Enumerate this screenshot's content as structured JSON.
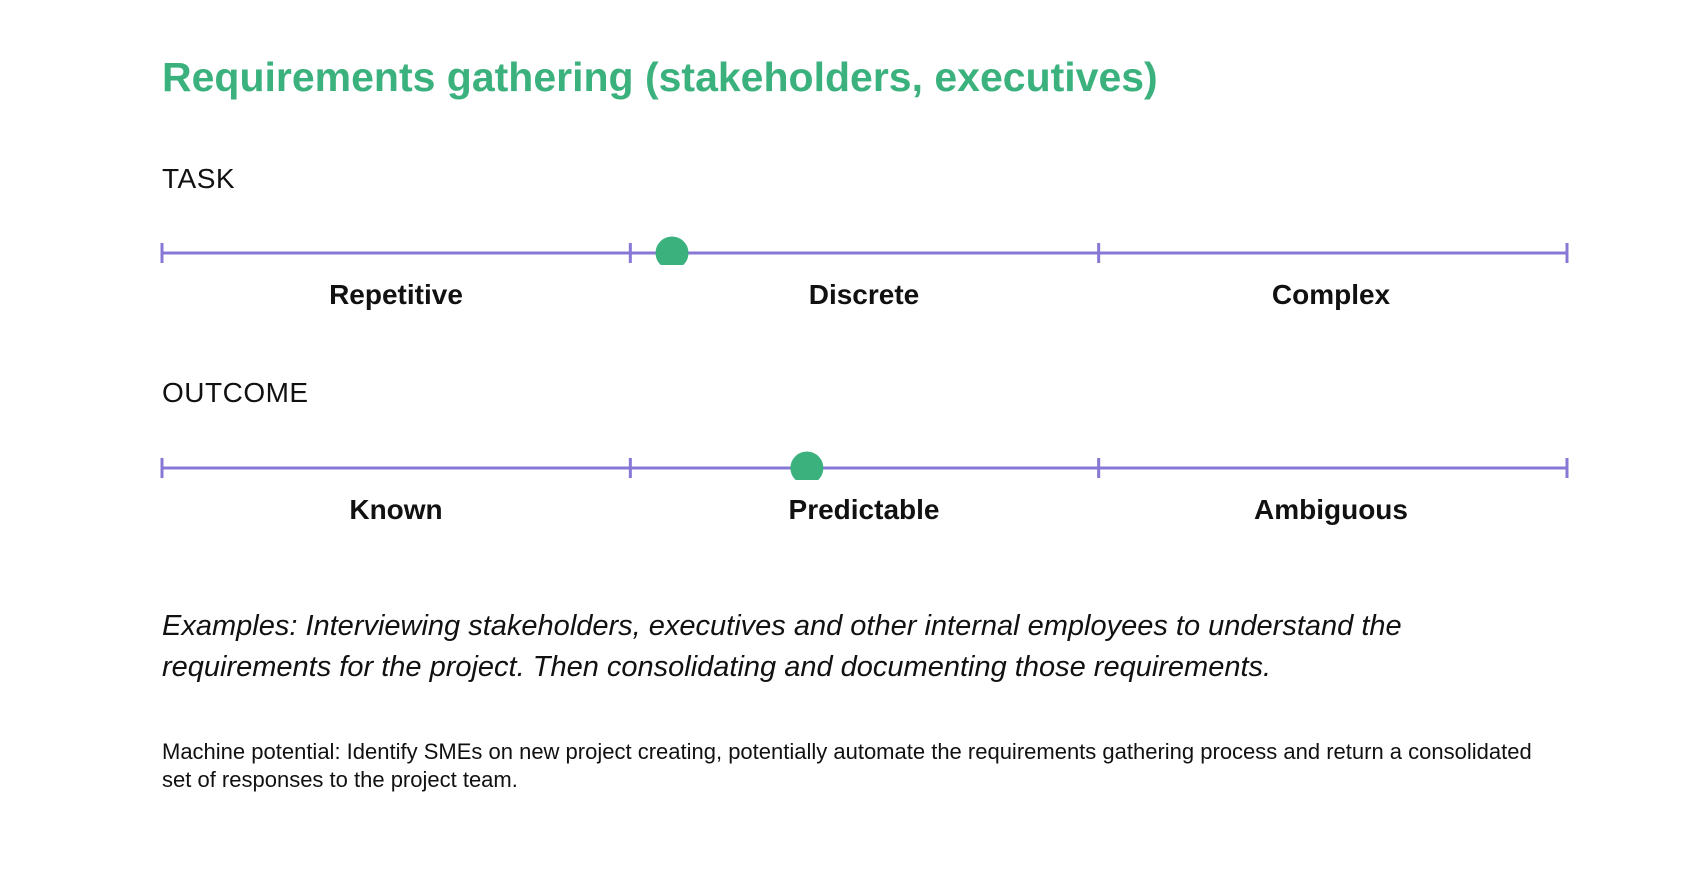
{
  "title": "Requirements gathering (stakeholders, executives)",
  "accent_color": "#3bb27e",
  "line_color": "#8878d6",
  "scales": [
    {
      "label": "TASK",
      "categories": [
        "Repetitive",
        "Discrete",
        "Complex"
      ],
      "marker_position": 0.363
    },
    {
      "label": "OUTCOME",
      "categories": [
        "Known",
        "Predictable",
        "Ambiguous"
      ],
      "marker_position": 0.459
    }
  ],
  "examples": "Examples: Interviewing stakeholders, executives and other internal employees to understand the requirements for the project. Then consolidating and documenting those requirements.",
  "machine_potential": "Machine potential: Identify SMEs on new project creating, potentially automate the requirements gathering process and return a consolidated set of responses to the project team."
}
